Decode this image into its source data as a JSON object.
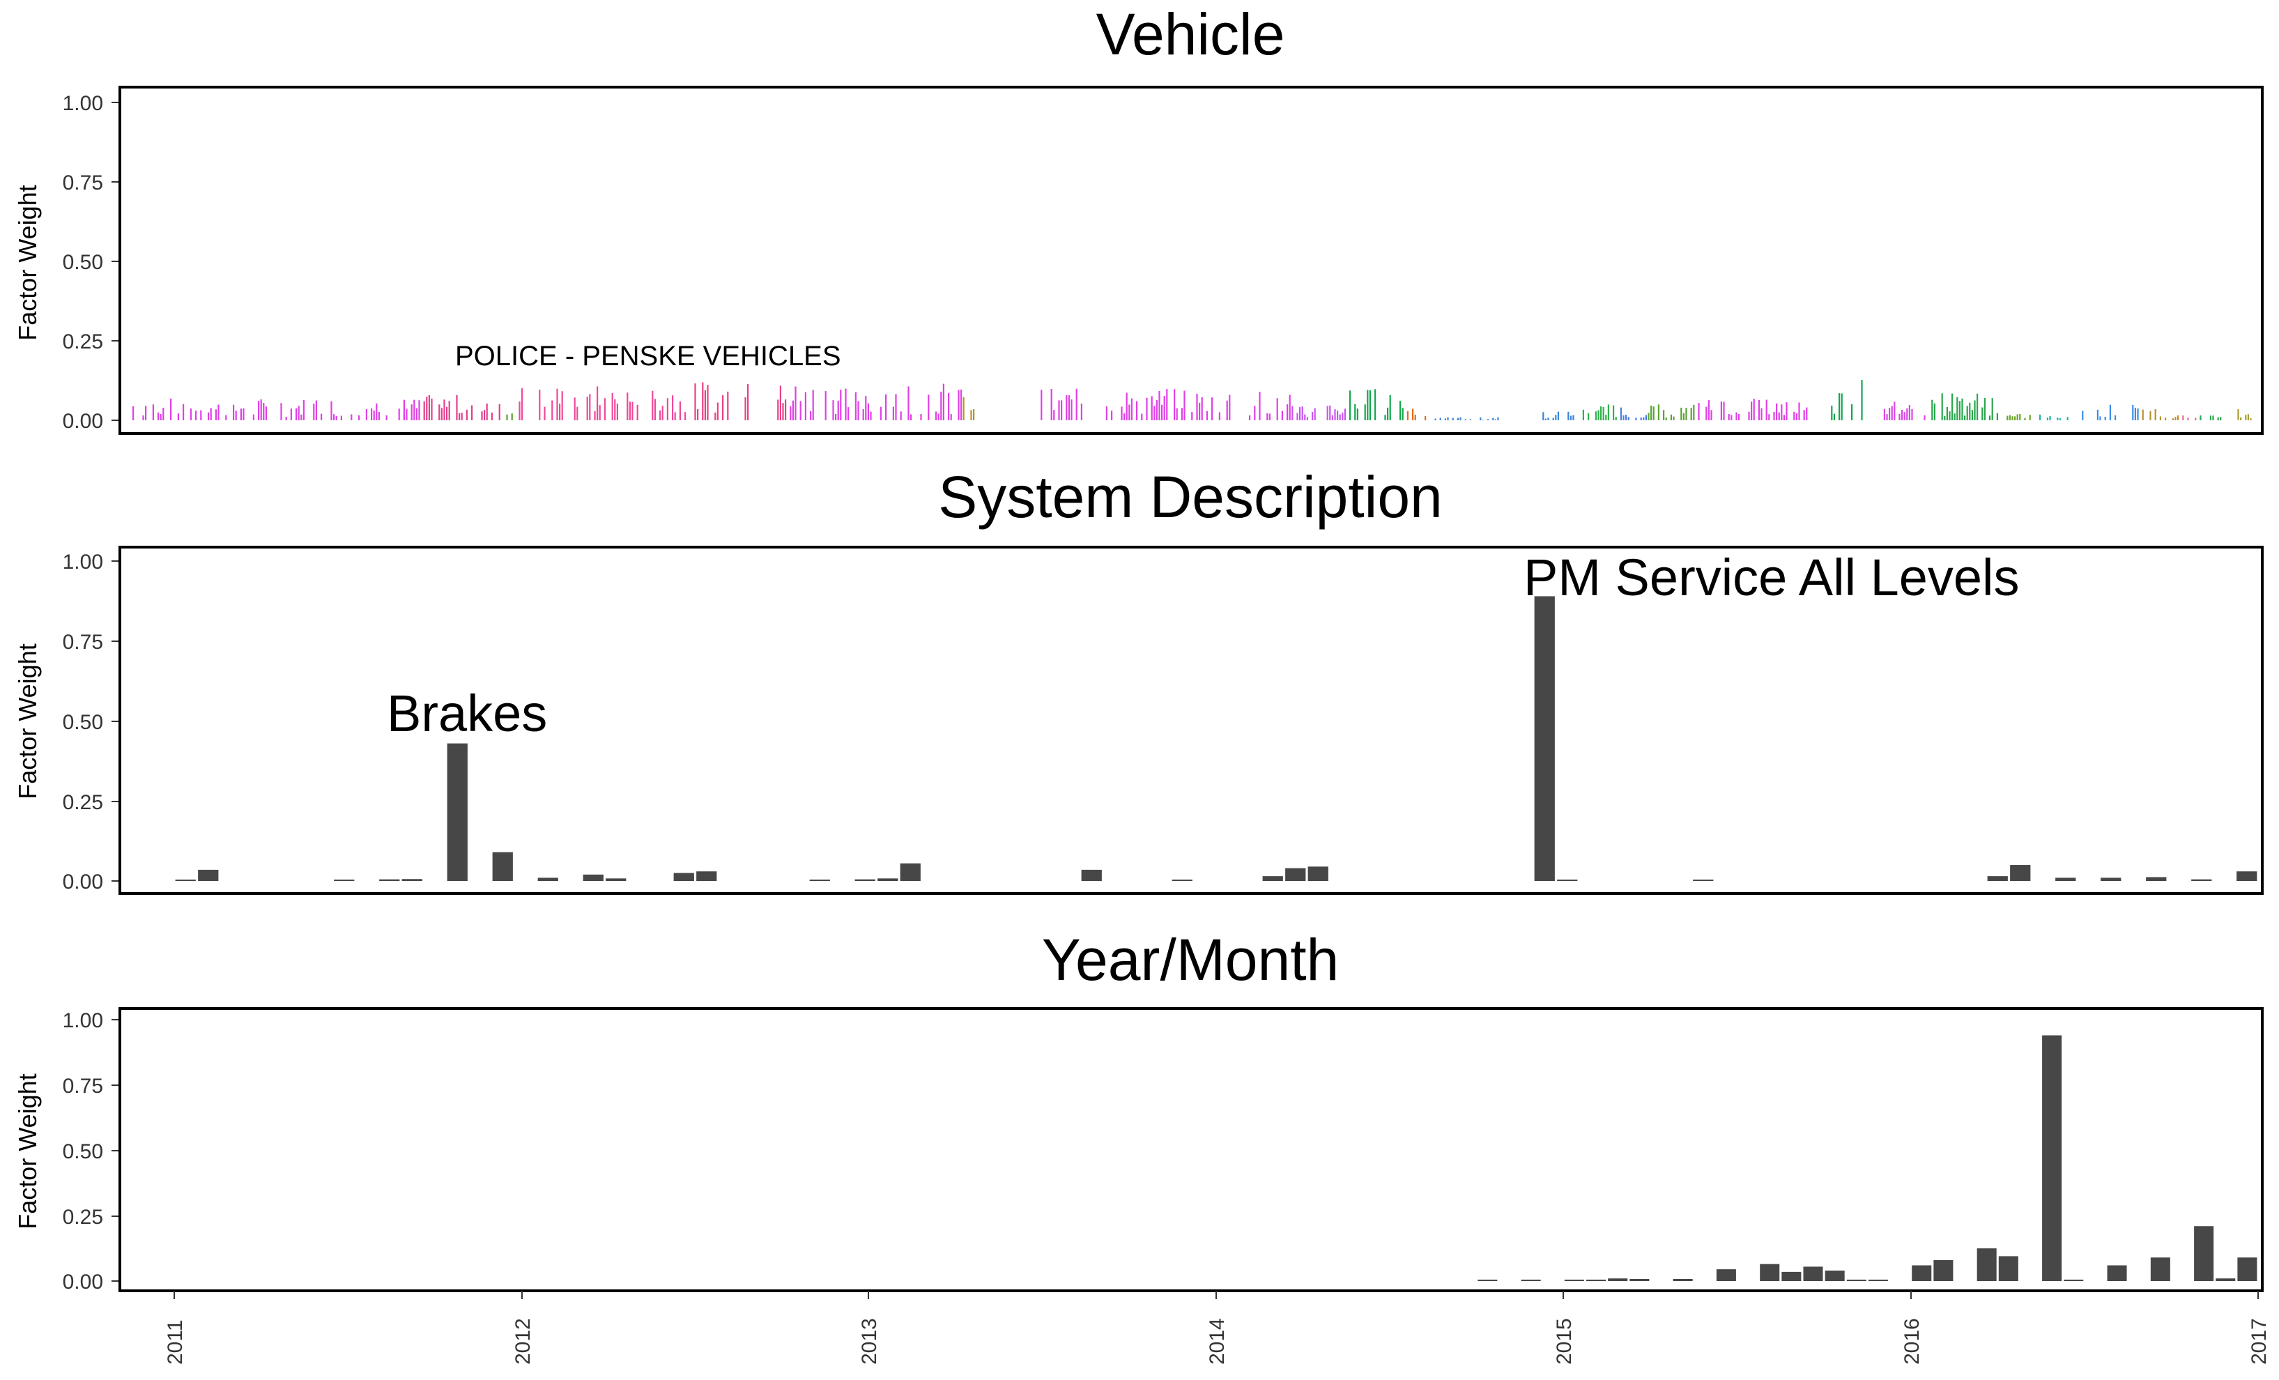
{
  "chart_data": [
    {
      "type": "bar",
      "title": "Vehicle",
      "ylabel": "Factor Weight",
      "ylim": [
        0,
        1.0
      ],
      "yticks": [
        "1.00",
        "0.75",
        "0.50",
        "0.25",
        "0.00"
      ],
      "annotation": {
        "text": "POLICE - PENSKE VEHICLES"
      },
      "note": "Hundreds of thin bars, one per vehicle, colored by vehicle group; heights approximate.",
      "color_segments": [
        {
          "from": 0.0,
          "to": 0.15,
          "color": "#e040e6",
          "max": 0.07
        },
        {
          "from": 0.15,
          "to": 0.19,
          "color": "#e2418f",
          "max": 0.08
        },
        {
          "from": 0.19,
          "to": 0.2,
          "color": "#5aa532",
          "max": 0.05
        },
        {
          "from": 0.2,
          "to": 0.29,
          "color": "#f0489a",
          "max": 0.11
        },
        {
          "from": 0.29,
          "to": 0.34,
          "color": "#ec3f86",
          "max": 0.12
        },
        {
          "from": 0.34,
          "to": 0.43,
          "color": "#e040e6",
          "max": 0.12
        },
        {
          "from": 0.43,
          "to": 0.44,
          "color": "#b8922a",
          "max": 0.08
        },
        {
          "from": 0.44,
          "to": 0.47,
          "color": "#ffffff",
          "max": 0.0
        },
        {
          "from": 0.47,
          "to": 0.6,
          "color": "#e040e6",
          "max": 0.1
        },
        {
          "from": 0.6,
          "to": 0.63,
          "color": "#ca55ef",
          "max": 0.06
        },
        {
          "from": 0.63,
          "to": 0.66,
          "color": "#12a84c",
          "max": 0.1
        },
        {
          "from": 0.66,
          "to": 0.67,
          "color": "#e46a1e",
          "max": 0.05
        },
        {
          "from": 0.67,
          "to": 0.71,
          "color": "#3b86d8",
          "max": 0.01
        },
        {
          "from": 0.71,
          "to": 0.73,
          "color": "#ffffff",
          "max": 0.0
        },
        {
          "from": 0.73,
          "to": 0.75,
          "color": "#3b86d8",
          "max": 0.03
        },
        {
          "from": 0.75,
          "to": 0.77,
          "color": "#2db24a",
          "max": 0.05
        },
        {
          "from": 0.77,
          "to": 0.785,
          "color": "#4a7ee8",
          "max": 0.05
        },
        {
          "from": 0.785,
          "to": 0.81,
          "color": "#5aa532",
          "max": 0.05
        },
        {
          "from": 0.81,
          "to": 0.87,
          "color": "#e040e6",
          "max": 0.07
        },
        {
          "from": 0.87,
          "to": 0.88,
          "color": "#ffffff",
          "max": 0.0
        },
        {
          "from": 0.88,
          "to": 0.9,
          "color": "#12a84c",
          "max": 0.13
        },
        {
          "from": 0.9,
          "to": 0.93,
          "color": "#d846e6",
          "max": 0.06
        },
        {
          "from": 0.93,
          "to": 0.97,
          "color": "#2aa74d",
          "max": 0.09
        },
        {
          "from": 0.97,
          "to": 0.985,
          "color": "#6aa52a",
          "max": 0.02
        },
        {
          "from": 0.985,
          "to": 1.01,
          "color": "#1fb3a6",
          "max": 0.02
        },
        {
          "from": 1.01,
          "to": 1.04,
          "color": "#3a8ee8",
          "max": 0.05
        },
        {
          "from": 1.04,
          "to": 1.06,
          "color": "#b8922a",
          "max": 0.04
        },
        {
          "from": 1.06,
          "to": 1.07,
          "color": "#e46a9a",
          "max": 0.02
        },
        {
          "from": 1.07,
          "to": 1.09,
          "color": "#2aa74d",
          "max": 0.02
        },
        {
          "from": 1.09,
          "to": 1.1,
          "color": "#a8a030",
          "max": 0.04
        }
      ]
    },
    {
      "type": "bar",
      "title": "System Description",
      "ylabel": "Factor Weight",
      "ylim": [
        0,
        1.0
      ],
      "yticks": [
        "1.00",
        "0.75",
        "0.50",
        "0.25",
        "0.00"
      ],
      "annotations": [
        {
          "text": "Brakes"
        },
        {
          "text": "PM Service All Levels"
        }
      ],
      "values": [
        0.003,
        0.035,
        0,
        0,
        0,
        0,
        0,
        0.002,
        0,
        0.005,
        0.006,
        0,
        0.43,
        0,
        0.09,
        0,
        0.01,
        0,
        0.02,
        0.008,
        0,
        0,
        0.025,
        0.03,
        0,
        0,
        0,
        0,
        0.003,
        0,
        0.005,
        0.008,
        0.055,
        0,
        0,
        0,
        0,
        0,
        0,
        0,
        0.035,
        0,
        0,
        0,
        0.003,
        0,
        0,
        0,
        0.015,
        0.04,
        0.045,
        0,
        0,
        0,
        0,
        0,
        0,
        0,
        0,
        0,
        0.89,
        0.003,
        0,
        0,
        0,
        0,
        0,
        0.003,
        0,
        0,
        0,
        0,
        0,
        0,
        0,
        0,
        0,
        0,
        0,
        0,
        0.015,
        0.05,
        0,
        0.01,
        0,
        0.01,
        0,
        0.012,
        0,
        0.005,
        0,
        0.03
      ]
    },
    {
      "type": "bar",
      "title": "Year/Month",
      "ylabel": "Factor Weight",
      "ylim": [
        0,
        1.0
      ],
      "yticks": [
        "1.00",
        "0.75",
        "0.50",
        "0.25",
        "0.00"
      ],
      "xticks": [
        "2011",
        "2012",
        "2013",
        "2014",
        "2015",
        "2016",
        "2017"
      ],
      "note": "Monthly bars, Jan 2011 through Dec 2016.",
      "values": [
        0,
        0,
        0,
        0,
        0,
        0,
        0,
        0,
        0,
        0,
        0,
        0,
        0,
        0,
        0,
        0,
        0,
        0,
        0,
        0,
        0,
        0,
        0,
        0,
        0,
        0,
        0,
        0,
        0,
        0,
        0,
        0,
        0,
        0,
        0,
        0,
        0,
        0,
        0,
        0,
        0,
        0,
        0,
        0,
        0,
        0,
        0,
        0,
        0,
        0,
        0,
        0,
        0,
        0,
        0,
        0,
        0,
        0,
        0,
        0,
        0.003,
        0,
        0.002,
        0,
        0.005,
        0.005,
        0.01,
        0.008,
        0,
        0.008,
        0,
        0.045,
        0,
        0.065,
        0.035,
        0.055,
        0.04,
        0.003,
        0.003,
        0,
        0.06,
        0.08,
        0,
        0.125,
        0.095,
        0,
        0.94,
        0.002,
        0,
        0.06,
        0,
        0.09,
        0,
        0.21,
        0.01,
        0.09
      ]
    }
  ]
}
